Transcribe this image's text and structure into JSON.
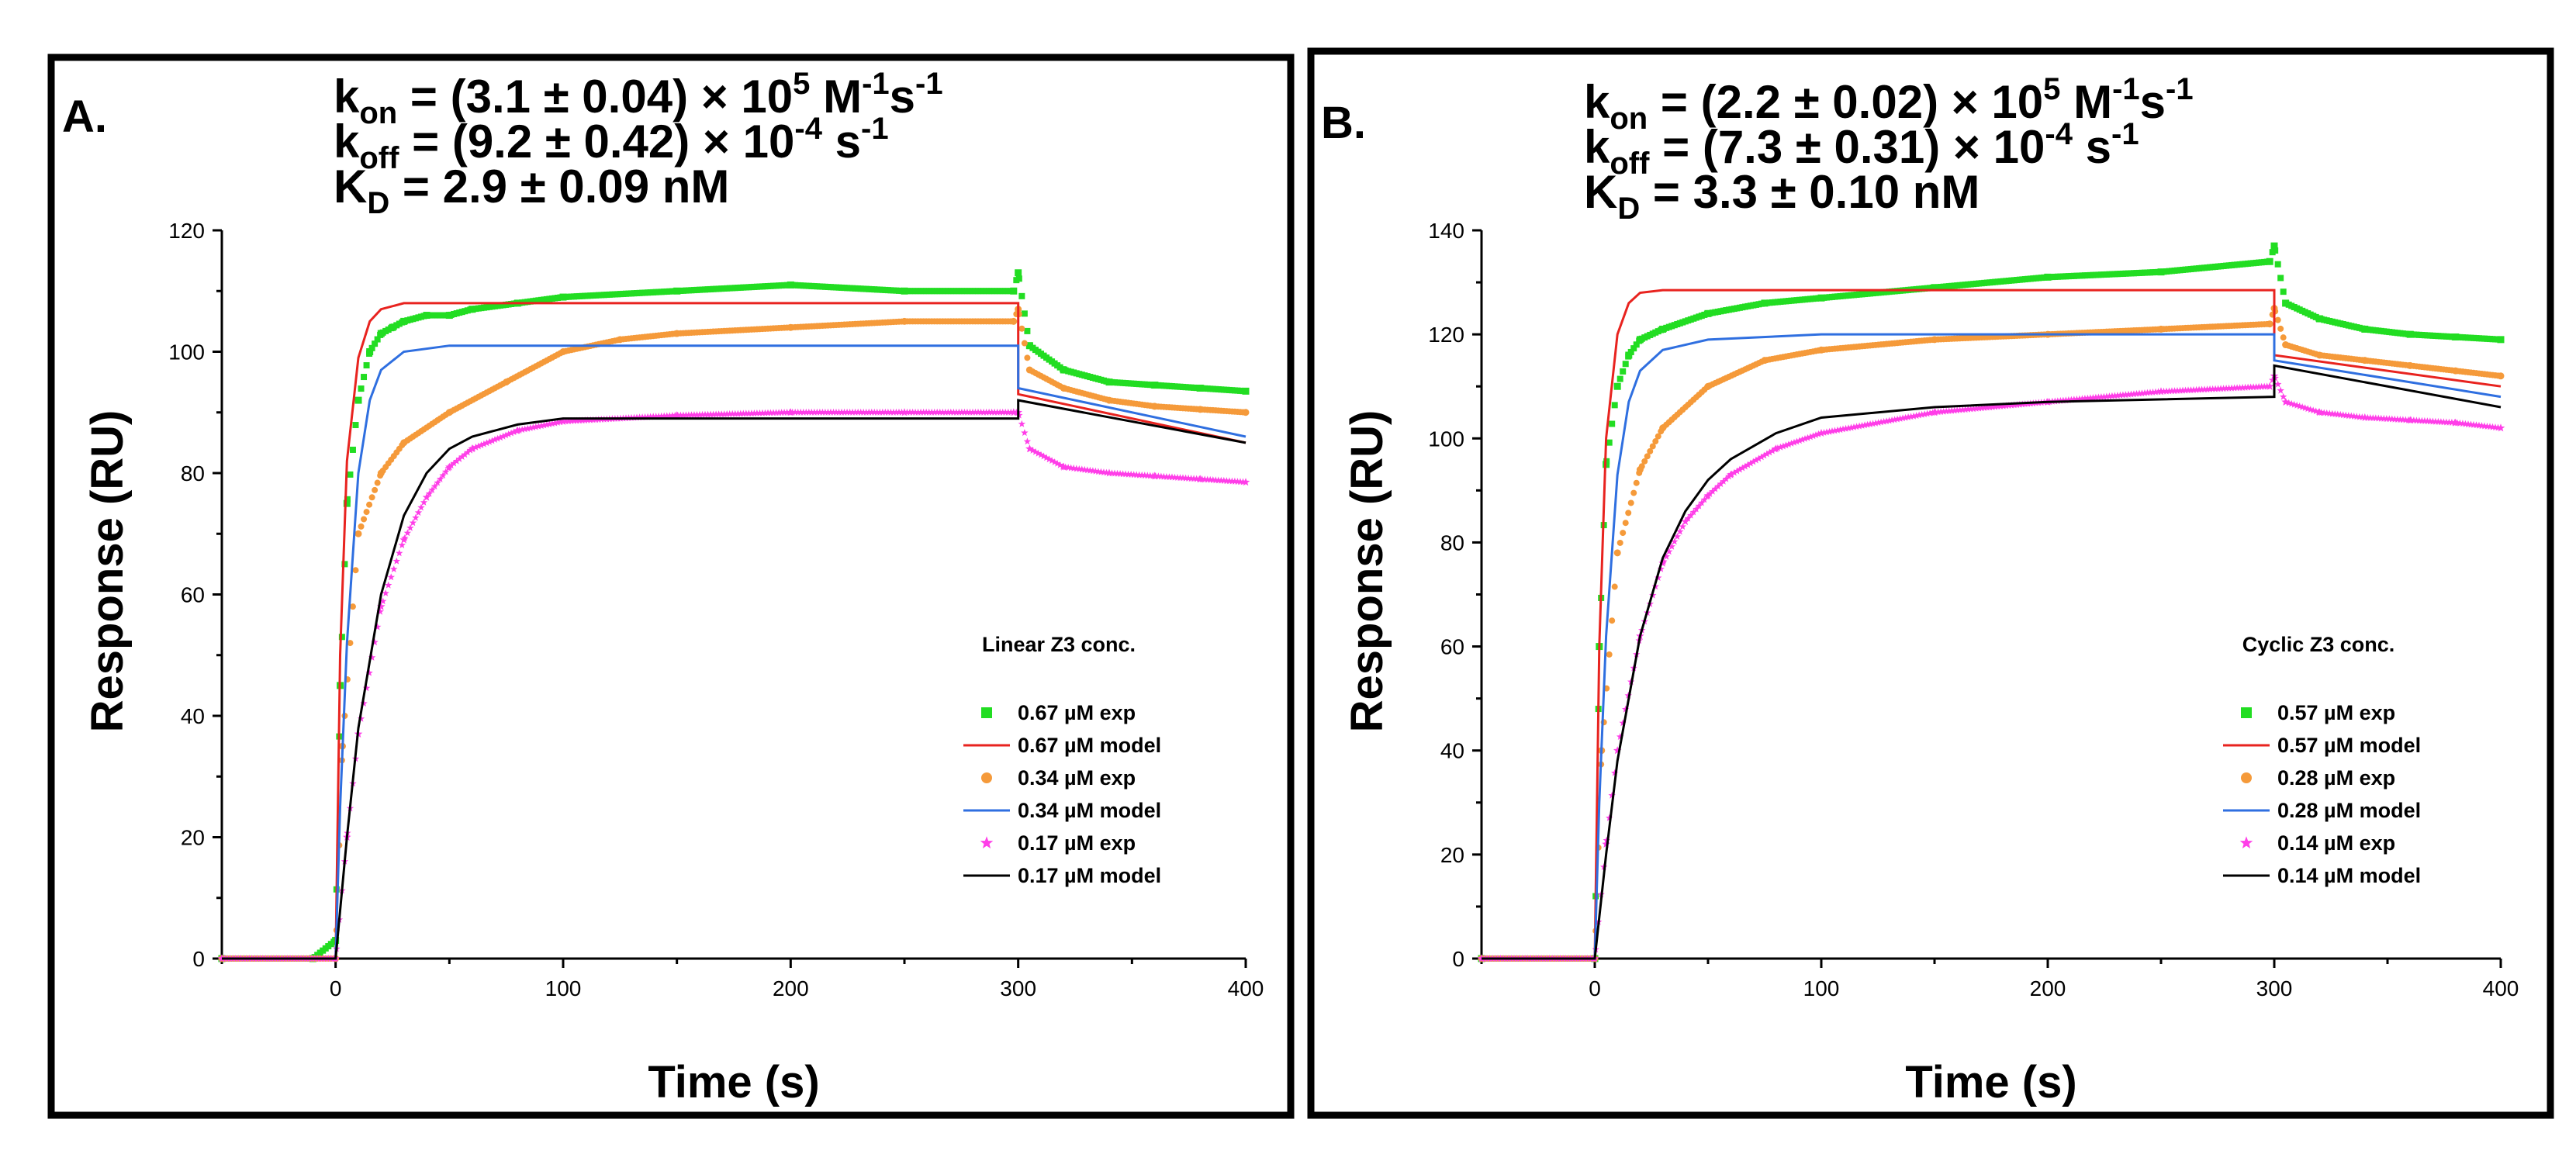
{
  "figure": {
    "panels": [
      {
        "label": "A.",
        "params": [
          {
            "base": "k",
            "sub": "on",
            "pre": " = (3.1 ± 0.04) × 10",
            "sup1": "5",
            "mid": " M",
            "sup2": "-1",
            "post": "s",
            "sup3": "-1"
          },
          {
            "base": "k",
            "sub": "off",
            "pre": " = (9.2 ± 0.42) × 10",
            "sup1": "-4",
            "mid": " s",
            "sup2": "-1",
            "post": "",
            "sup3": ""
          },
          {
            "base": "K",
            "sub": "D",
            "pre": " = 2.9 ± 0.09 nM",
            "sup1": "",
            "mid": "",
            "sup2": "",
            "post": "",
            "sup3": ""
          }
        ],
        "legend_title": "Linear Z3 conc."
      },
      {
        "label": "B.",
        "params": [
          {
            "base": "k",
            "sub": "on",
            "pre": " = (2.2 ± 0.02) × 10",
            "sup1": "5",
            "mid": " M",
            "sup2": "-1",
            "post": "s",
            "sup3": "-1"
          },
          {
            "base": "k",
            "sub": "off",
            "pre": " = (7.3 ± 0.31) × 10",
            "sup1": "-4",
            "mid": " s",
            "sup2": "-1",
            "post": "",
            "sup3": ""
          },
          {
            "base": "K",
            "sub": "D",
            "pre": " = 3.3 ± 0.10 nM",
            "sup1": "",
            "mid": "",
            "sup2": "",
            "post": "",
            "sup3": ""
          }
        ],
        "legend_title": "Cyclic Z3 conc."
      }
    ]
  },
  "chart_data": [
    {
      "type": "line",
      "xlabel": "Time (s)",
      "ylabel": "Response (RU)",
      "xlim": [
        -50,
        400
      ],
      "ylim": [
        0,
        120
      ],
      "xticks": [
        0,
        100,
        200,
        300,
        400
      ],
      "yticks": [
        0,
        20,
        40,
        60,
        80,
        100,
        120
      ],
      "legend_title": "Linear Z3 conc.",
      "legend_position": "lower-right",
      "association_end": 300,
      "series": [
        {
          "name": "0.67 µM exp",
          "kind": "scatter",
          "marker": "square",
          "color": "#22dd22",
          "points": [
            [
              -50,
              0
            ],
            [
              -10,
              0
            ],
            [
              0,
              3
            ],
            [
              2,
              45
            ],
            [
              5,
              75
            ],
            [
              10,
              92
            ],
            [
              15,
              100
            ],
            [
              20,
              103
            ],
            [
              25,
              104
            ],
            [
              30,
              105
            ],
            [
              40,
              106
            ],
            [
              50,
              106
            ],
            [
              60,
              107
            ],
            [
              80,
              108
            ],
            [
              100,
              109
            ],
            [
              150,
              110
            ],
            [
              200,
              111
            ],
            [
              250,
              110
            ],
            [
              298,
              110
            ],
            [
              300,
              113
            ],
            [
              305,
              101
            ],
            [
              320,
              97
            ],
            [
              340,
              95
            ],
            [
              360,
              94.5
            ],
            [
              380,
              94
            ],
            [
              400,
              93.5
            ]
          ]
        },
        {
          "name": "0.67 µM model",
          "kind": "line",
          "color": "#e8231f",
          "points": [
            [
              -50,
              0
            ],
            [
              0,
              0
            ],
            [
              2,
              50
            ],
            [
              5,
              82
            ],
            [
              10,
              99
            ],
            [
              15,
              105
            ],
            [
              20,
              107
            ],
            [
              30,
              108
            ],
            [
              100,
              108
            ],
            [
              200,
              108
            ],
            [
              300,
              108
            ],
            [
              300,
              93
            ],
            [
              400,
              85
            ]
          ]
        },
        {
          "name": "0.34 µM exp",
          "kind": "scatter",
          "marker": "circle",
          "color": "#f59a3a",
          "points": [
            [
              -50,
              0
            ],
            [
              0,
              0
            ],
            [
              3,
              35
            ],
            [
              10,
              70
            ],
            [
              20,
              80
            ],
            [
              30,
              85
            ],
            [
              50,
              90
            ],
            [
              75,
              95
            ],
            [
              100,
              100
            ],
            [
              125,
              102
            ],
            [
              150,
              103
            ],
            [
              200,
              104
            ],
            [
              250,
              105
            ],
            [
              298,
              105
            ],
            [
              300,
              107
            ],
            [
              305,
              97
            ],
            [
              320,
              94
            ],
            [
              340,
              92
            ],
            [
              360,
              91
            ],
            [
              380,
              90.5
            ],
            [
              400,
              90
            ]
          ]
        },
        {
          "name": "0.34 µM model",
          "kind": "line",
          "color": "#2f6fe0",
          "points": [
            [
              -50,
              0
            ],
            [
              0,
              0
            ],
            [
              2,
              25
            ],
            [
              5,
              52
            ],
            [
              10,
              80
            ],
            [
              15,
              92
            ],
            [
              20,
              97
            ],
            [
              30,
              100
            ],
            [
              50,
              101
            ],
            [
              100,
              101
            ],
            [
              200,
              101
            ],
            [
              300,
              101
            ],
            [
              300,
              94
            ],
            [
              400,
              86
            ]
          ]
        },
        {
          "name": "0.17 µM exp",
          "kind": "scatter",
          "marker": "star",
          "color": "#ff3ee8",
          "points": [
            [
              -50,
              0
            ],
            [
              0,
              0
            ],
            [
              5,
              20
            ],
            [
              10,
              37
            ],
            [
              20,
              58
            ],
            [
              30,
              69
            ],
            [
              40,
              76
            ],
            [
              50,
              81
            ],
            [
              60,
              84
            ],
            [
              80,
              87
            ],
            [
              100,
              88.5
            ],
            [
              150,
              89.5
            ],
            [
              200,
              90
            ],
            [
              250,
              90
            ],
            [
              298,
              90
            ],
            [
              300,
              90
            ],
            [
              305,
              84
            ],
            [
              320,
              81
            ],
            [
              340,
              80
            ],
            [
              360,
              79.5
            ],
            [
              380,
              79
            ],
            [
              400,
              78.5
            ]
          ]
        },
        {
          "name": "0.17 µM model",
          "kind": "line",
          "color": "#000000",
          "points": [
            [
              -50,
              0
            ],
            [
              0,
              0
            ],
            [
              5,
              20
            ],
            [
              10,
              38
            ],
            [
              20,
              60
            ],
            [
              30,
              73
            ],
            [
              40,
              80
            ],
            [
              50,
              84
            ],
            [
              60,
              86
            ],
            [
              80,
              88
            ],
            [
              100,
              89
            ],
            [
              150,
              89
            ],
            [
              200,
              89
            ],
            [
              300,
              89
            ],
            [
              300,
              92
            ],
            [
              400,
              85
            ]
          ]
        }
      ]
    },
    {
      "type": "line",
      "xlabel": "Time (s)",
      "ylabel": "Response (RU)",
      "xlim": [
        -50,
        400
      ],
      "ylim": [
        0,
        140
      ],
      "xticks": [
        0,
        100,
        200,
        300,
        400
      ],
      "yticks": [
        0,
        20,
        40,
        60,
        80,
        100,
        120,
        140
      ],
      "legend_title": "Cyclic Z3 conc.",
      "legend_position": "lower-right",
      "association_end": 300,
      "series": [
        {
          "name": "0.57 µM exp",
          "kind": "scatter",
          "marker": "square",
          "color": "#22dd22",
          "points": [
            [
              -50,
              0
            ],
            [
              0,
              0
            ],
            [
              2,
              60
            ],
            [
              5,
              95
            ],
            [
              10,
              110
            ],
            [
              15,
              116
            ],
            [
              20,
              119
            ],
            [
              30,
              121
            ],
            [
              50,
              124
            ],
            [
              75,
              126
            ],
            [
              100,
              127
            ],
            [
              150,
              129
            ],
            [
              200,
              131
            ],
            [
              250,
              132
            ],
            [
              298,
              134
            ],
            [
              300,
              137
            ],
            [
              305,
              126
            ],
            [
              320,
              123
            ],
            [
              340,
              121
            ],
            [
              360,
              120
            ],
            [
              380,
              119.5
            ],
            [
              400,
              119
            ]
          ]
        },
        {
          "name": "0.57 µM model",
          "kind": "line",
          "color": "#e8231f",
          "points": [
            [
              -50,
              0
            ],
            [
              0,
              0
            ],
            [
              2,
              60
            ],
            [
              5,
              100
            ],
            [
              10,
              120
            ],
            [
              15,
              126
            ],
            [
              20,
              128
            ],
            [
              30,
              128.5
            ],
            [
              100,
              128.5
            ],
            [
              200,
              128.5
            ],
            [
              300,
              128.5
            ],
            [
              300,
              116
            ],
            [
              400,
              110
            ]
          ]
        },
        {
          "name": "0.28 µM exp",
          "kind": "scatter",
          "marker": "circle",
          "color": "#f59a3a",
          "points": [
            [
              -50,
              0
            ],
            [
              0,
              0
            ],
            [
              3,
              40
            ],
            [
              10,
              78
            ],
            [
              20,
              94
            ],
            [
              30,
              102
            ],
            [
              50,
              110
            ],
            [
              75,
              115
            ],
            [
              100,
              117
            ],
            [
              150,
              119
            ],
            [
              200,
              120
            ],
            [
              250,
              121
            ],
            [
              298,
              122
            ],
            [
              300,
              125
            ],
            [
              305,
              118
            ],
            [
              320,
              116
            ],
            [
              340,
              115
            ],
            [
              360,
              114
            ],
            [
              380,
              113
            ],
            [
              400,
              112
            ]
          ]
        },
        {
          "name": "0.28 µM model",
          "kind": "line",
          "color": "#2f6fe0",
          "points": [
            [
              -50,
              0
            ],
            [
              0,
              0
            ],
            [
              2,
              30
            ],
            [
              5,
              62
            ],
            [
              10,
              93
            ],
            [
              15,
              107
            ],
            [
              20,
              113
            ],
            [
              30,
              117
            ],
            [
              50,
              119
            ],
            [
              100,
              120
            ],
            [
              200,
              120
            ],
            [
              300,
              120
            ],
            [
              300,
              115
            ],
            [
              400,
              108
            ]
          ]
        },
        {
          "name": "0.14 µM exp",
          "kind": "scatter",
          "marker": "star",
          "color": "#ff3ee8",
          "points": [
            [
              -50,
              0
            ],
            [
              0,
              0
            ],
            [
              5,
              22
            ],
            [
              10,
              40
            ],
            [
              20,
              62
            ],
            [
              30,
              76
            ],
            [
              40,
              84
            ],
            [
              50,
              89
            ],
            [
              60,
              93
            ],
            [
              80,
              98
            ],
            [
              100,
              101
            ],
            [
              150,
              105
            ],
            [
              200,
              107
            ],
            [
              250,
              109
            ],
            [
              298,
              110
            ],
            [
              300,
              112
            ],
            [
              305,
              107
            ],
            [
              320,
              105
            ],
            [
              340,
              104
            ],
            [
              360,
              103.5
            ],
            [
              380,
              103
            ],
            [
              400,
              102
            ]
          ]
        },
        {
          "name": "0.14 µM model",
          "kind": "line",
          "color": "#000000",
          "points": [
            [
              -50,
              0
            ],
            [
              0,
              0
            ],
            [
              5,
              20
            ],
            [
              10,
              38
            ],
            [
              20,
              62
            ],
            [
              30,
              77
            ],
            [
              40,
              86
            ],
            [
              50,
              92
            ],
            [
              60,
              96
            ],
            [
              80,
              101
            ],
            [
              100,
              104
            ],
            [
              150,
              106
            ],
            [
              200,
              107
            ],
            [
              300,
              108
            ],
            [
              300,
              114
            ],
            [
              400,
              106
            ]
          ]
        }
      ]
    }
  ]
}
